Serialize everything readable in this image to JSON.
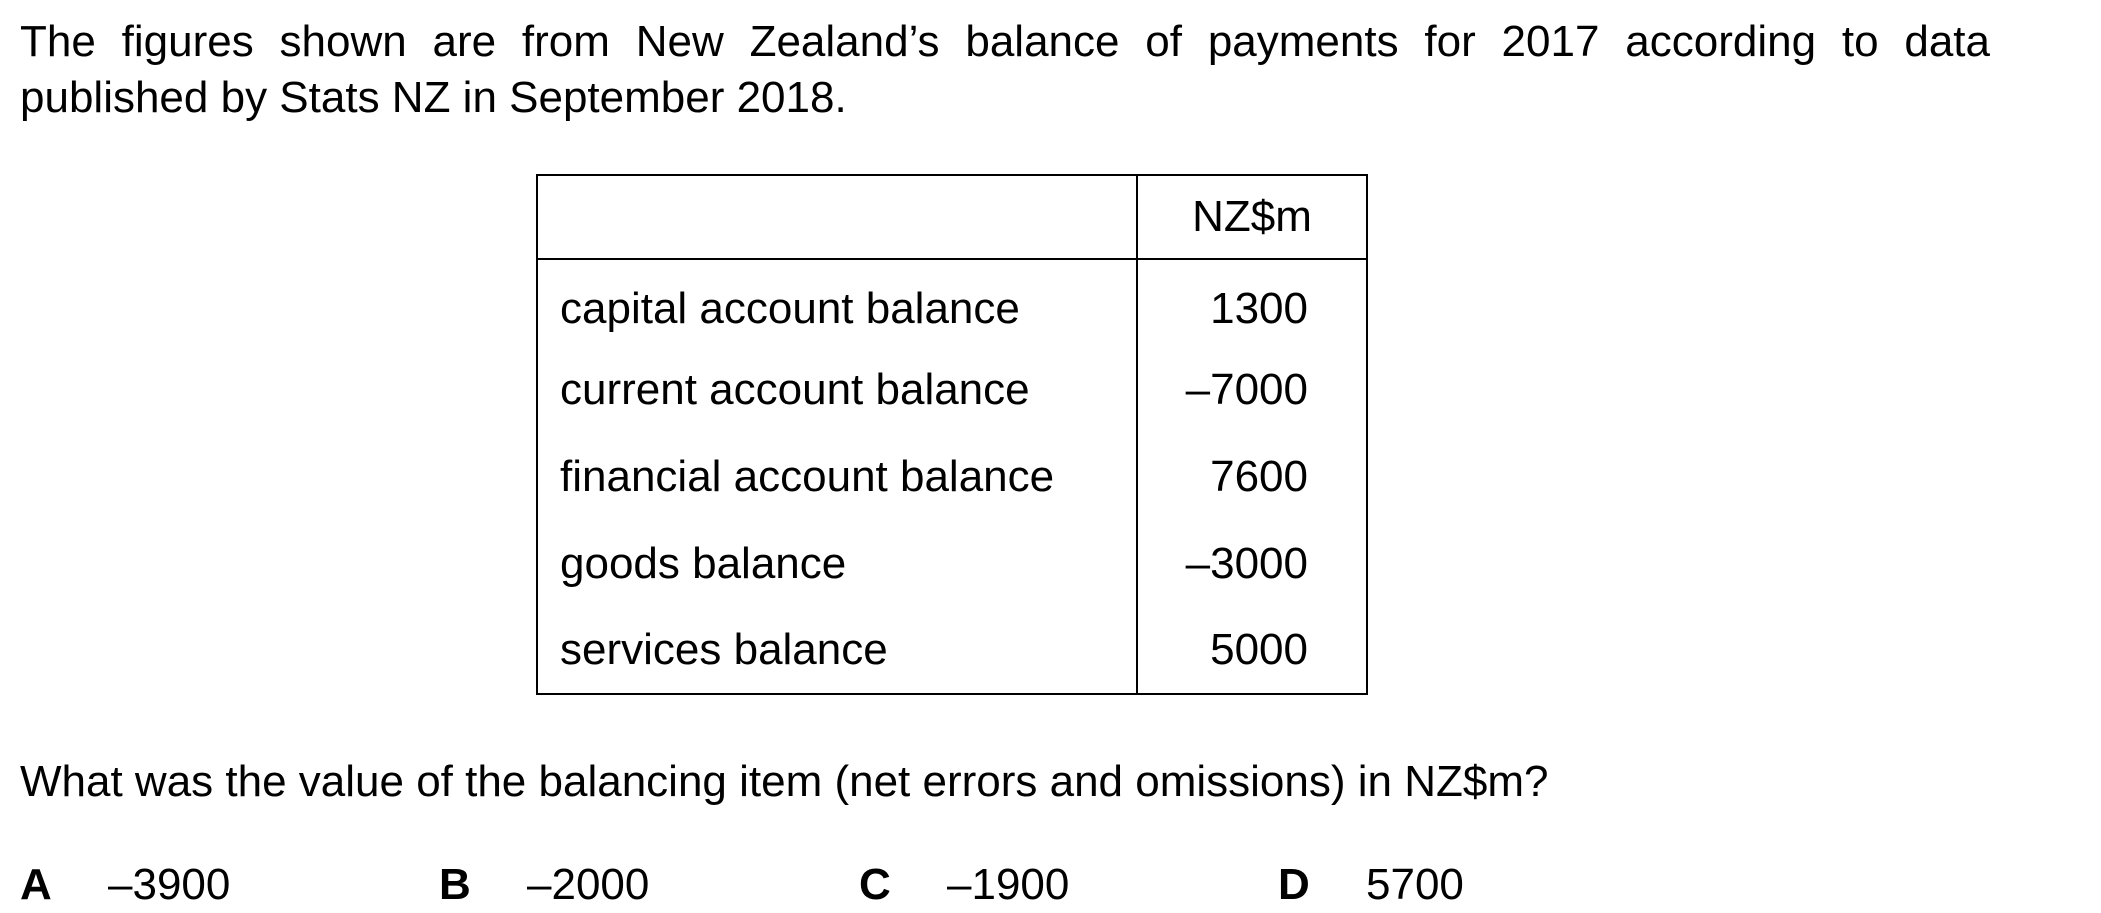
{
  "intro": "The figures shown are from New Zealand’s balance of payments for 2017 according to data published by Stats NZ in September 2018.",
  "table": {
    "header": {
      "label": "",
      "value": "NZ$m"
    },
    "rows": [
      {
        "label": "capital account balance",
        "value": "1300"
      },
      {
        "label": "current account balance",
        "value": "–7000"
      },
      {
        "label": "financial account balance",
        "value": "7600"
      },
      {
        "label": "goods balance",
        "value": "–3000"
      },
      {
        "label": "services balance",
        "value": "5000"
      }
    ]
  },
  "question": "What was the value of the balancing item (net errors and omissions) in NZ$m?",
  "options": [
    {
      "letter": "A",
      "value": "–3900"
    },
    {
      "letter": "B",
      "value": "–2000"
    },
    {
      "letter": "C",
      "value": "–1900"
    },
    {
      "letter": "D",
      "value": "5700"
    }
  ]
}
